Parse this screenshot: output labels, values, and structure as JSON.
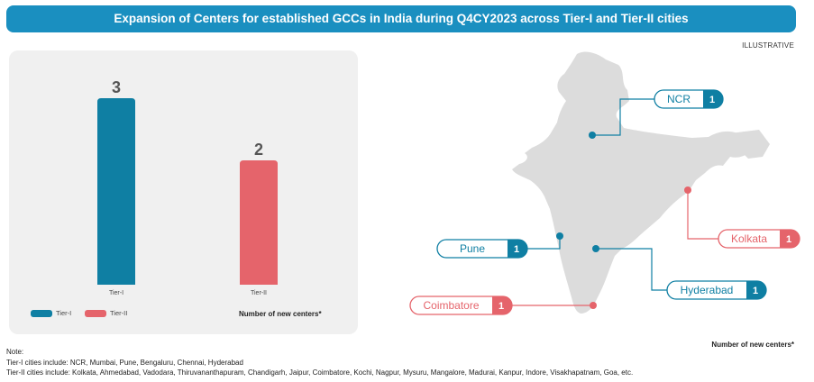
{
  "title": "Expansion of Centers for established GCCs in India during Q4CY2023 across Tier-I and Tier-II cities",
  "badge": "ILLUSTRATIVE",
  "colors": {
    "tier1": "#0f7fa3",
    "tier2": "#e5646b",
    "banner": "#1a8fc0",
    "map": "#dcdcdc"
  },
  "chart_data": {
    "type": "bar",
    "categories": [
      "Tier-I",
      "Tier-II"
    ],
    "values": [
      3,
      2
    ],
    "colors": [
      "#0f7fa3",
      "#e5646b"
    ],
    "ylim": [
      0,
      3
    ],
    "legend": [
      "Tier-I",
      "Tier-II"
    ],
    "legend_position": "bottom-left",
    "note": "Number of new centers*"
  },
  "map": {
    "note": "Number of new centers*",
    "cities": [
      {
        "name": "NCR",
        "value": "1",
        "tier": "Tier-I"
      },
      {
        "name": "Kolkata",
        "value": "1",
        "tier": "Tier-II"
      },
      {
        "name": "Pune",
        "value": "1",
        "tier": "Tier-I"
      },
      {
        "name": "Hyderabad",
        "value": "1",
        "tier": "Tier-I"
      },
      {
        "name": "Coimbatore",
        "value": "1",
        "tier": "Tier-II"
      }
    ]
  },
  "notes": {
    "heading": "Note:",
    "tier1": "Tier-I cities include: NCR, Mumbai, Pune, Bengaluru, Chennai, Hyderabad",
    "tier2": "Tier-II cities include: Kolkata, Ahmedabad, Vadodara, Thiruvananthapuram, Chandigarh, Jaipur, Coimbatore, Kochi, Nagpur, Mysuru, Mangalore, Madurai, Kanpur, Indore, Visakhapatnam, Goa, etc."
  }
}
